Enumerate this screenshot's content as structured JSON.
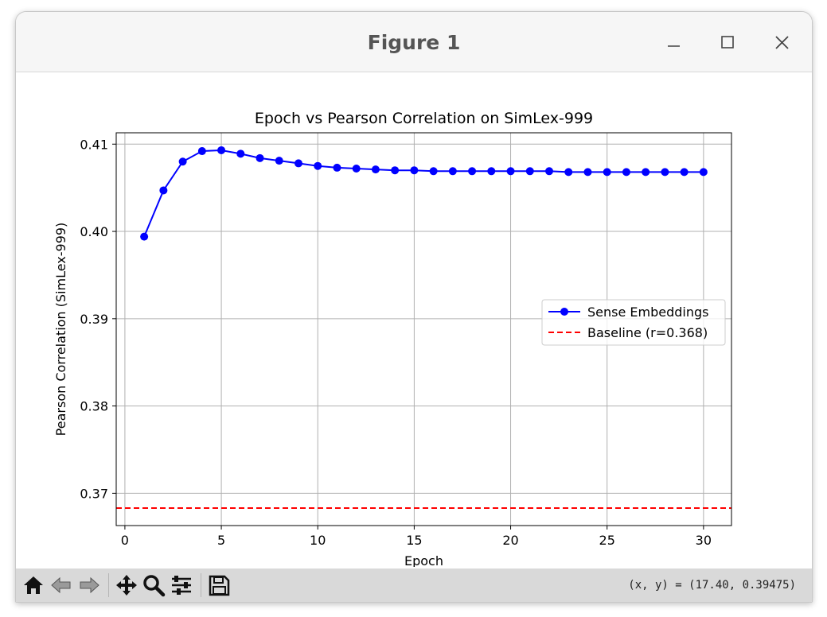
{
  "window": {
    "title": "Figure 1"
  },
  "toolbar": {
    "buttons": [
      "home-icon",
      "back-icon",
      "forward-icon",
      "pan-icon",
      "zoom-icon",
      "configure-subplots-icon",
      "save-icon"
    ],
    "coords": "(x, y) = (17.40, 0.39475)"
  },
  "colors": {
    "series": "#0000ff",
    "baseline": "#ff0000",
    "grid": "#b0b0b0"
  },
  "chart_data": {
    "type": "line",
    "title": "Epoch vs Pearson Correlation on SimLex-999",
    "xlabel": "Epoch",
    "ylabel": "Pearson Correlation (SimLex-999)",
    "xlim": [
      -0.45,
      31.45
    ],
    "ylim": [
      0.3663,
      0.4113
    ],
    "xticks": [
      0,
      5,
      10,
      15,
      20,
      25,
      30
    ],
    "xtick_labels": [
      "0",
      "5",
      "10",
      "15",
      "20",
      "25",
      "30"
    ],
    "yticks": [
      0.37,
      0.38,
      0.39,
      0.4,
      0.41
    ],
    "ytick_labels": [
      "0.37",
      "0.38",
      "0.39",
      "0.40",
      "0.41"
    ],
    "grid": true,
    "legend_position": "center-right",
    "series": [
      {
        "name": "Sense Embeddings",
        "style": "solid-line-circle-markers",
        "x": [
          1,
          2,
          3,
          4,
          5,
          6,
          7,
          8,
          9,
          10,
          11,
          12,
          13,
          14,
          15,
          16,
          17,
          18,
          19,
          20,
          21,
          22,
          23,
          24,
          25,
          26,
          27,
          28,
          29,
          30
        ],
        "values": [
          0.3994,
          0.4047,
          0.408,
          0.4092,
          0.4093,
          0.4089,
          0.4084,
          0.4081,
          0.4078,
          0.4075,
          0.4073,
          0.4072,
          0.4071,
          0.407,
          0.407,
          0.4069,
          0.4069,
          0.4069,
          0.4069,
          0.4069,
          0.4069,
          0.4069,
          0.4068,
          0.4068,
          0.4068,
          0.4068,
          0.4068,
          0.4068,
          0.4068,
          0.4068
        ]
      }
    ],
    "hlines": [
      {
        "name": "Baseline (r=0.368)",
        "y": 0.3683,
        "style": "dashed"
      }
    ]
  }
}
